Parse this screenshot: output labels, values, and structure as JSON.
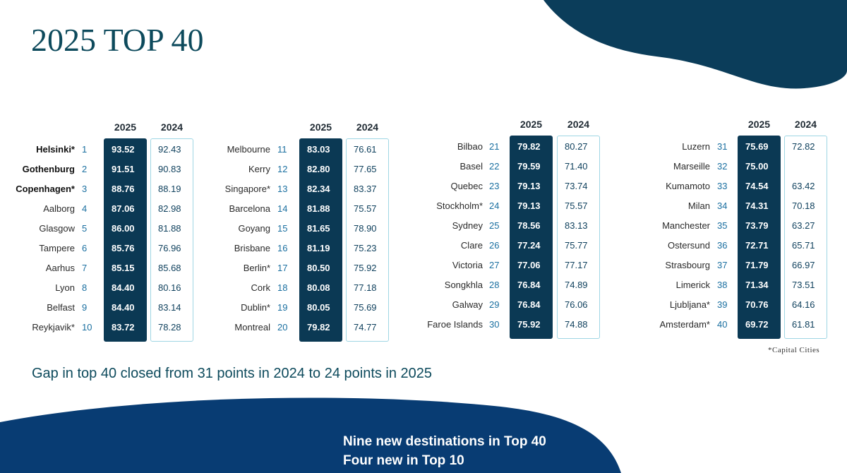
{
  "title": "2025 TOP 40",
  "columns": [
    "2025",
    "2024"
  ],
  "groups": [
    {
      "rows": [
        {
          "name": "Helsinki*",
          "rank": "1",
          "y2025": "93.52",
          "y2024": "92.43",
          "bold": true
        },
        {
          "name": "Gothenburg",
          "rank": "2",
          "y2025": "91.51",
          "y2024": "90.83",
          "bold": true
        },
        {
          "name": "Copenhagen*",
          "rank": "3",
          "y2025": "88.76",
          "y2024": "88.19",
          "bold": true
        },
        {
          "name": "Aalborg",
          "rank": "4",
          "y2025": "87.06",
          "y2024": "82.98"
        },
        {
          "name": "Glasgow",
          "rank": "5",
          "y2025": "86.00",
          "y2024": "81.88"
        },
        {
          "name": "Tampere",
          "rank": "6",
          "y2025": "85.76",
          "y2024": "76.96"
        },
        {
          "name": "Aarhus",
          "rank": "7",
          "y2025": "85.15",
          "y2024": "85.68"
        },
        {
          "name": "Lyon",
          "rank": "8",
          "y2025": "84.40",
          "y2024": "80.16"
        },
        {
          "name": "Belfast",
          "rank": "9",
          "y2025": "84.40",
          "y2024": "83.14"
        },
        {
          "name": "Reykjavik*",
          "rank": "10",
          "y2025": "83.72",
          "y2024": "78.28"
        }
      ]
    },
    {
      "rows": [
        {
          "name": "Melbourne",
          "rank": "11",
          "y2025": "83.03",
          "y2024": "76.61"
        },
        {
          "name": "Kerry",
          "rank": "12",
          "y2025": "82.80",
          "y2024": "77.65"
        },
        {
          "name": "Singapore*",
          "rank": "13",
          "y2025": "82.34",
          "y2024": "83.37"
        },
        {
          "name": "Barcelona",
          "rank": "14",
          "y2025": "81.88",
          "y2024": "75.57"
        },
        {
          "name": "Goyang",
          "rank": "15",
          "y2025": "81.65",
          "y2024": "78.90"
        },
        {
          "name": "Brisbane",
          "rank": "16",
          "y2025": "81.19",
          "y2024": "75.23"
        },
        {
          "name": "Berlin*",
          "rank": "17",
          "y2025": "80.50",
          "y2024": "75.92"
        },
        {
          "name": "Cork",
          "rank": "18",
          "y2025": "80.08",
          "y2024": "77.18"
        },
        {
          "name": "Dublin*",
          "rank": "19",
          "y2025": "80.05",
          "y2024": "75.69"
        },
        {
          "name": "Montreal",
          "rank": "20",
          "y2025": "79.82",
          "y2024": "74.77"
        }
      ]
    },
    {
      "rows": [
        {
          "name": "Bilbao",
          "rank": "21",
          "y2025": "79.82",
          "y2024": "80.27"
        },
        {
          "name": "Basel",
          "rank": "22",
          "y2025": "79.59",
          "y2024": "71.40"
        },
        {
          "name": "Quebec",
          "rank": "23",
          "y2025": "79.13",
          "y2024": "73.74"
        },
        {
          "name": "Stockholm*",
          "rank": "24",
          "y2025": "79.13",
          "y2024": "75.57"
        },
        {
          "name": "Sydney",
          "rank": "25",
          "y2025": "78.56",
          "y2024": "83.13"
        },
        {
          "name": "Clare",
          "rank": "26",
          "y2025": "77.24",
          "y2024": "75.77"
        },
        {
          "name": "Victoria",
          "rank": "27",
          "y2025": "77.06",
          "y2024": "77.17"
        },
        {
          "name": "Songkhla",
          "rank": "28",
          "y2025": "76.84",
          "y2024": "74.89"
        },
        {
          "name": "Galway",
          "rank": "29",
          "y2025": "76.84",
          "y2024": "76.06"
        },
        {
          "name": "Faroe Islands",
          "rank": "30",
          "y2025": "75.92",
          "y2024": "74.88"
        }
      ]
    },
    {
      "rows": [
        {
          "name": "Luzern",
          "rank": "31",
          "y2025": "75.69",
          "y2024": "72.82"
        },
        {
          "name": "Marseille",
          "rank": "32",
          "y2025": "75.00"
        },
        {
          "name": "Kumamoto",
          "rank": "33",
          "y2025": "74.54",
          "y2024": "63.42"
        },
        {
          "name": "Milan",
          "rank": "34",
          "y2025": "74.31",
          "y2024": "70.18"
        },
        {
          "name": "Manchester",
          "rank": "35",
          "y2025": "73.79",
          "y2024": "63.27"
        },
        {
          "name": "Ostersund",
          "rank": "36",
          "y2025": "72.71",
          "y2024": "65.71"
        },
        {
          "name": "Strasbourg",
          "rank": "37",
          "y2025": "71.79",
          "y2024": "66.97"
        },
        {
          "name": "Limerick",
          "rank": "38",
          "y2025": "71.34",
          "y2024": "73.51"
        },
        {
          "name": "Ljubljana*",
          "rank": "39",
          "y2025": "70.76",
          "y2024": "64.16"
        },
        {
          "name": "Amsterdam*",
          "rank": "40",
          "y2025": "69.72",
          "y2024": "61.81"
        }
      ]
    }
  ],
  "footnote": "*Capital Cities",
  "summary": "Gap in top 40 closed from 31 points in 2024 to 24 points in 2025",
  "highlights": [
    "Nine new destinations in Top 40",
    "Four new in Top 10"
  ]
}
